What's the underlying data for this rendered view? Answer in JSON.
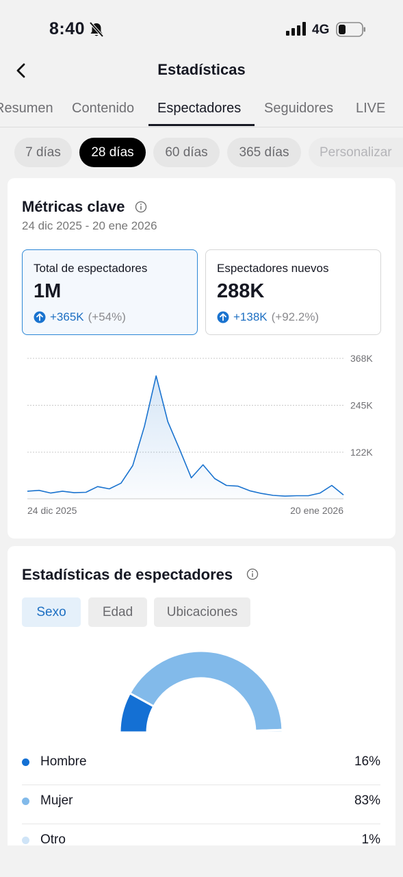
{
  "status_bar": {
    "time": "8:40",
    "network": "4G"
  },
  "header": {
    "title": "Estadísticas"
  },
  "tabs": [
    {
      "label": "Resumen"
    },
    {
      "label": "Contenido"
    },
    {
      "label": "Espectadores",
      "active": true
    },
    {
      "label": "Seguidores"
    },
    {
      "label": "LIVE"
    }
  ],
  "ranges": [
    {
      "label": "7 días"
    },
    {
      "label": "28 días",
      "active": true
    },
    {
      "label": "60 días"
    },
    {
      "label": "365 días"
    },
    {
      "label": "Personalizar"
    }
  ],
  "key_metrics": {
    "title": "Métricas clave",
    "date_range": "24 dic 2025 - 20 ene 2026",
    "cards": [
      {
        "label": "Total de espectadores",
        "value": "1M",
        "change": "+365K",
        "change_pct": "(+54%)",
        "selected": true
      },
      {
        "label": "Espectadores nuevos",
        "value": "288K",
        "change": "+138K",
        "change_pct": "(+92.2%)"
      }
    ]
  },
  "chart_data": {
    "type": "area",
    "y_ticks": [
      "368K",
      "245K",
      "122K"
    ],
    "x_labels": [
      "24 dic 2025",
      "20 ene 2026"
    ],
    "ylim": [
      0,
      368000
    ],
    "grid": true,
    "color": "#1a73cf",
    "values": [
      20000,
      22000,
      15000,
      20000,
      16000,
      17000,
      32000,
      26000,
      41000,
      87000,
      190000,
      322000,
      202000,
      130000,
      55000,
      89000,
      53000,
      35000,
      33000,
      21000,
      14000,
      9000,
      7000,
      8000,
      8000,
      15000,
      35000,
      10000
    ]
  },
  "viewer_stats": {
    "title": "Estadísticas de espectadores",
    "segments": [
      {
        "label": "Sexo",
        "active": true
      },
      {
        "label": "Edad"
      },
      {
        "label": "Ubicaciones"
      }
    ],
    "gender": [
      {
        "label": "Hombre",
        "value": "16%",
        "share": 16,
        "color": "#1470d4"
      },
      {
        "label": "Mujer",
        "value": "83%",
        "share": 83,
        "color": "#82baea"
      },
      {
        "label": "Otro",
        "value": "1%",
        "share": 1,
        "color": "#cfe4f7"
      }
    ]
  }
}
